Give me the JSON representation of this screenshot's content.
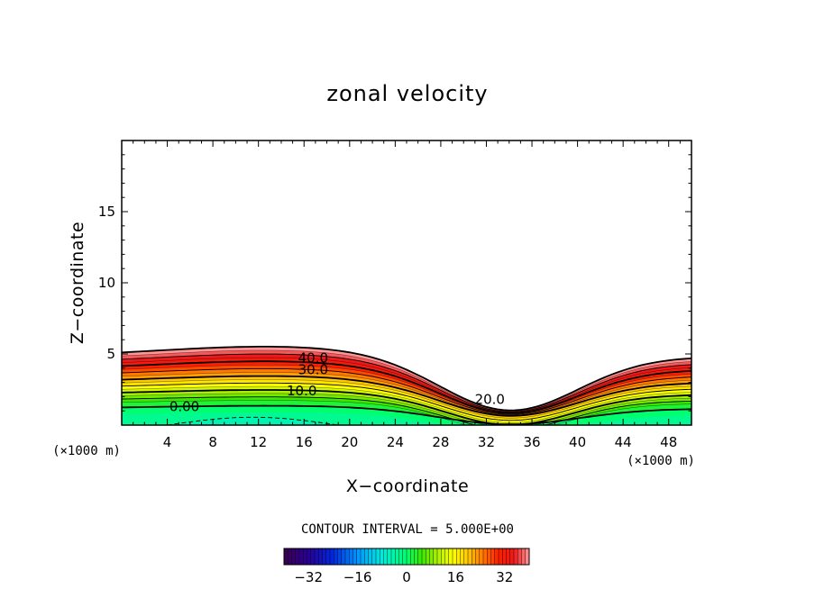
{
  "chart_data": {
    "type": "contour",
    "title": "zonal velocity",
    "xlabel": "X−coordinate",
    "ylabel": "Z−coordinate",
    "x_unit": "(×1000 m)",
    "y_unit": "(×1000 m)",
    "xlim": [
      0,
      50
    ],
    "ylim": [
      0,
      20
    ],
    "x_ticks": [
      4,
      8,
      12,
      16,
      20,
      24,
      28,
      32,
      36,
      40,
      44,
      48
    ],
    "y_ticks": [
      5,
      10,
      15
    ],
    "contour_interval_text": "CONTOUR INTERVAL = 5.000E+00",
    "contour_interval": 5,
    "contour_labels": [
      {
        "text": "40.0",
        "x": 16.8,
        "z": 4.7
      },
      {
        "text": "30.0",
        "x": 16.8,
        "z": 3.9
      },
      {
        "text": "10.0",
        "x": 15.8,
        "z": 2.4
      },
      {
        "text": "20.0",
        "x": 32.3,
        "z": 1.8
      },
      {
        "text": "0.00",
        "x": 5.5,
        "z": 1.3
      }
    ],
    "colorbar": {
      "min": -40,
      "max": 40,
      "ticks": [
        -32,
        -16,
        0,
        16,
        32
      ],
      "tick_labels": [
        "−32",
        "−16",
        "0",
        "16",
        "32"
      ]
    },
    "colors": {
      "sky": "#ffffff",
      "frame": "#000000"
    }
  }
}
